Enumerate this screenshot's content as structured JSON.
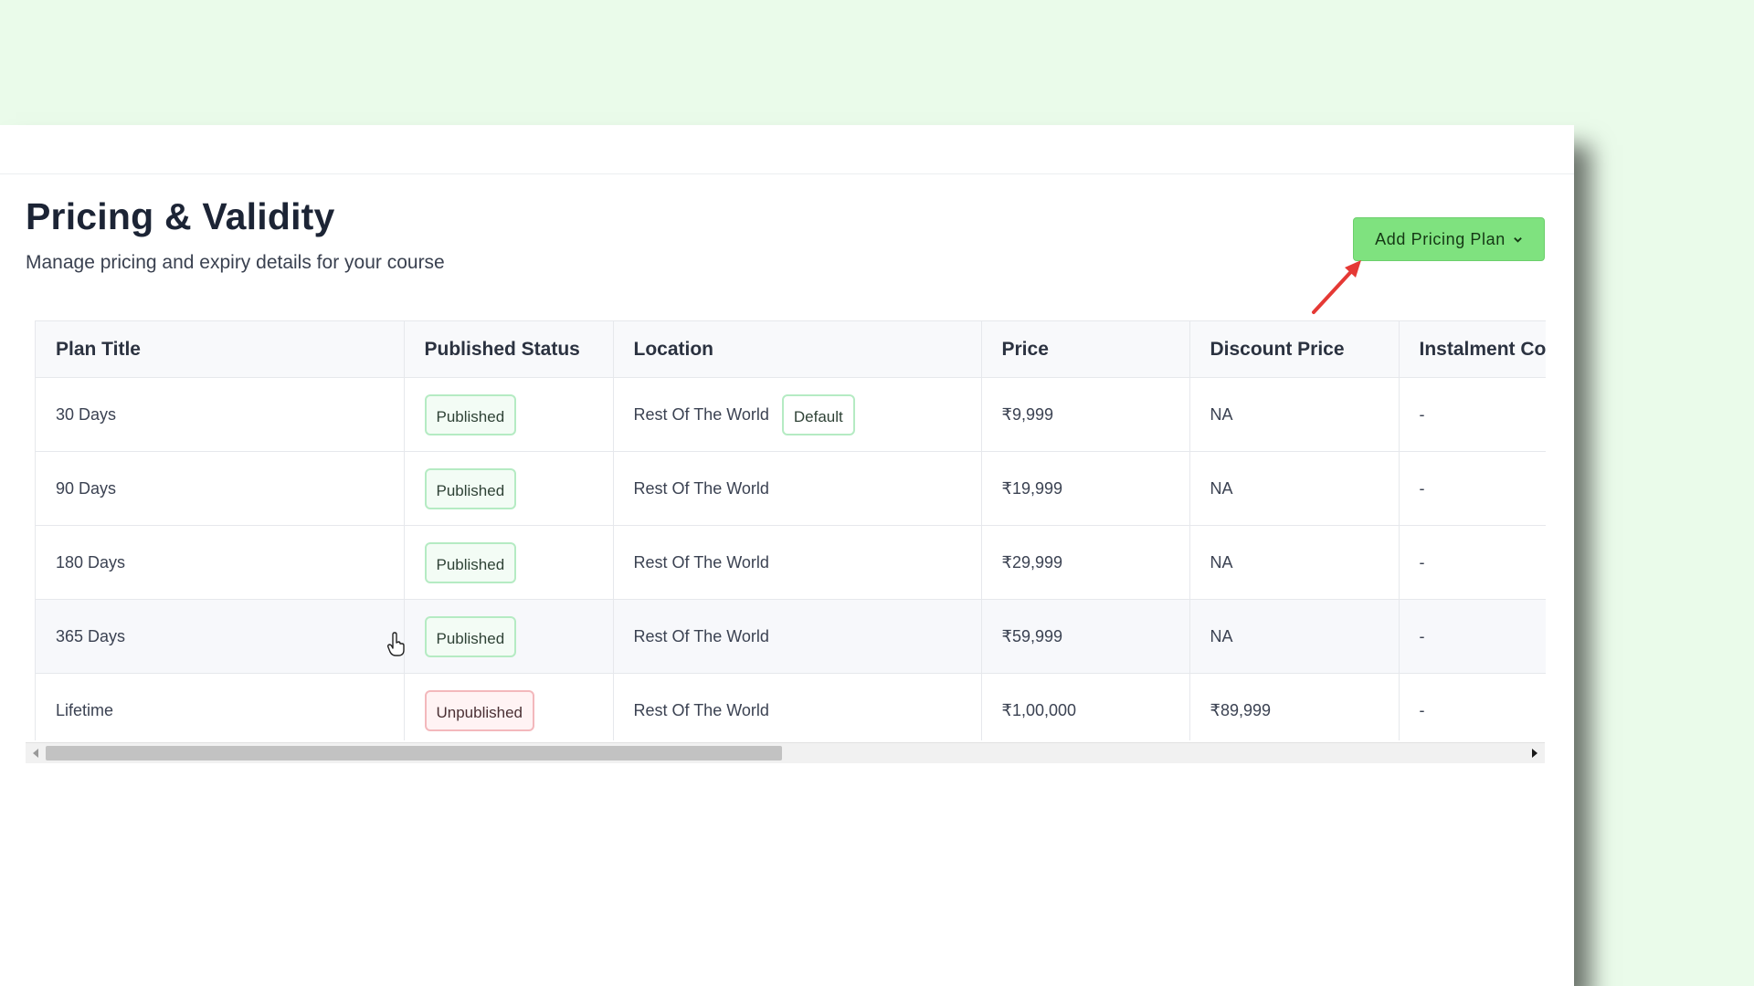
{
  "header": {
    "title": "Pricing & Validity",
    "subtitle": "Manage pricing and expiry details for your course"
  },
  "actions": {
    "add_plan_label": "Add Pricing Plan",
    "arrow_color": "#e53935",
    "accent_color": "#7fe27f"
  },
  "table": {
    "columns": [
      "Plan Title",
      "Published Status",
      "Location",
      "Price",
      "Discount Price",
      "Instalment Co"
    ],
    "rows": [
      {
        "plan": "30 Days",
        "status": "Published",
        "location": "Rest Of The World",
        "location_badge": "Default",
        "price": "₹9,999",
        "discount": "NA",
        "instalment": "-"
      },
      {
        "plan": "90 Days",
        "status": "Published",
        "location": "Rest Of The World",
        "price": "₹19,999",
        "discount": "NA",
        "instalment": "-"
      },
      {
        "plan": "180 Days",
        "status": "Published",
        "location": "Rest Of The World",
        "price": "₹29,999",
        "discount": "NA",
        "instalment": "-"
      },
      {
        "plan": "365 Days",
        "status": "Published",
        "location": "Rest Of The World",
        "price": "₹59,999",
        "discount": "NA",
        "instalment": "-"
      },
      {
        "plan": "Lifetime",
        "status": "Unpublished",
        "location": "Rest Of The World",
        "price": "₹1,00,000",
        "discount": "₹89,999",
        "instalment": "-"
      }
    ]
  },
  "icons": {
    "dropdown": "chevron-down-icon",
    "annotation": "red-arrow-icon",
    "pointer": "hand-cursor-icon"
  }
}
